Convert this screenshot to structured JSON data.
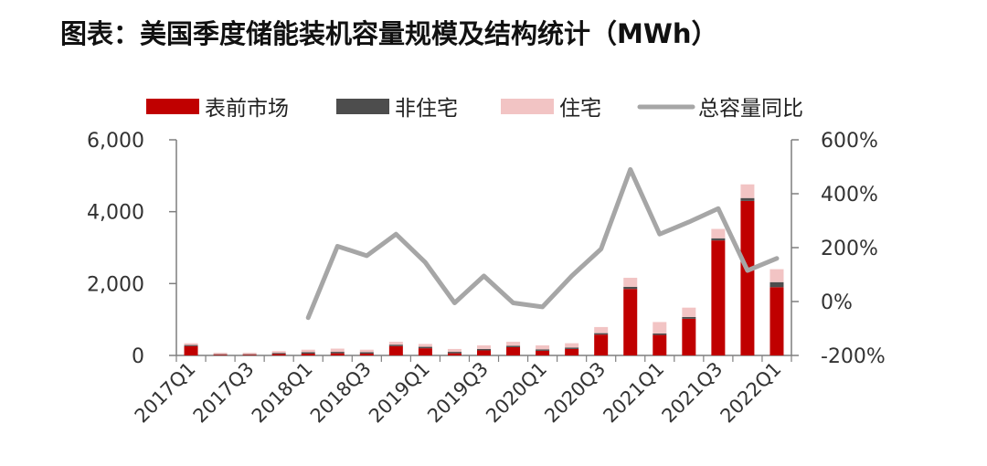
{
  "chart_data": {
    "type": "bar",
    "title": "图表：美国季度储能装机容量规模及结构统计（MWh）",
    "categories": [
      "2017Q1",
      "2017Q2",
      "2017Q3",
      "2017Q4",
      "2018Q1",
      "2018Q2",
      "2018Q3",
      "2018Q4",
      "2019Q1",
      "2019Q2",
      "2019Q3",
      "2019Q4",
      "2020Q1",
      "2020Q2",
      "2020Q3",
      "2020Q4",
      "2021Q1",
      "2021Q2",
      "2021Q3",
      "2021Q4",
      "2022Q1"
    ],
    "x_tick_labels": [
      "2017Q1",
      "2017Q3",
      "2018Q1",
      "2018Q3",
      "2019Q1",
      "2019Q3",
      "2020Q1",
      "2020Q3",
      "2021Q1",
      "2021Q3",
      "2022Q1"
    ],
    "series": [
      {
        "name": "表前市场",
        "type": "bar",
        "stack": "total",
        "color": "#C00000",
        "values": [
          260,
          20,
          20,
          40,
          50,
          60,
          50,
          260,
          200,
          60,
          140,
          230,
          130,
          180,
          580,
          1850,
          570,
          1020,
          3200,
          4300,
          1900
        ]
      },
      {
        "name": "非住宅",
        "type": "bar",
        "stack": "total",
        "color": "#4D4D4D",
        "values": [
          30,
          15,
          15,
          30,
          40,
          40,
          40,
          40,
          40,
          40,
          40,
          40,
          40,
          40,
          40,
          60,
          40,
          50,
          60,
          80,
          140
        ]
      },
      {
        "name": "住宅",
        "type": "bar",
        "stack": "total",
        "color": "#F2C4C4",
        "values": [
          50,
          40,
          40,
          50,
          70,
          90,
          70,
          80,
          80,
          80,
          100,
          110,
          110,
          120,
          170,
          250,
          320,
          260,
          260,
          380,
          360
        ]
      },
      {
        "name": "总容量同比",
        "type": "line",
        "axis": "right",
        "color": "#A6A6A6",
        "values": [
          null,
          null,
          null,
          null,
          -60,
          205,
          170,
          250,
          145,
          -5,
          95,
          -5,
          -20,
          95,
          195,
          490,
          250,
          295,
          345,
          115,
          160
        ]
      }
    ],
    "y_left": {
      "min": 0,
      "max": 6000,
      "ticks": [
        0,
        2000,
        4000,
        6000
      ],
      "tick_labels": [
        "0",
        "2,000",
        "4,000",
        "6,000"
      ]
    },
    "y_right": {
      "min": -200,
      "max": 600,
      "ticks": [
        -200,
        0,
        200,
        400,
        600
      ],
      "tick_labels": [
        "-200%",
        "0%",
        "200%",
        "400%",
        "600%"
      ]
    },
    "legend": {
      "position": "top",
      "items": [
        "表前市场",
        "非住宅",
        "住宅",
        "总容量同比"
      ]
    },
    "grid": false
  }
}
